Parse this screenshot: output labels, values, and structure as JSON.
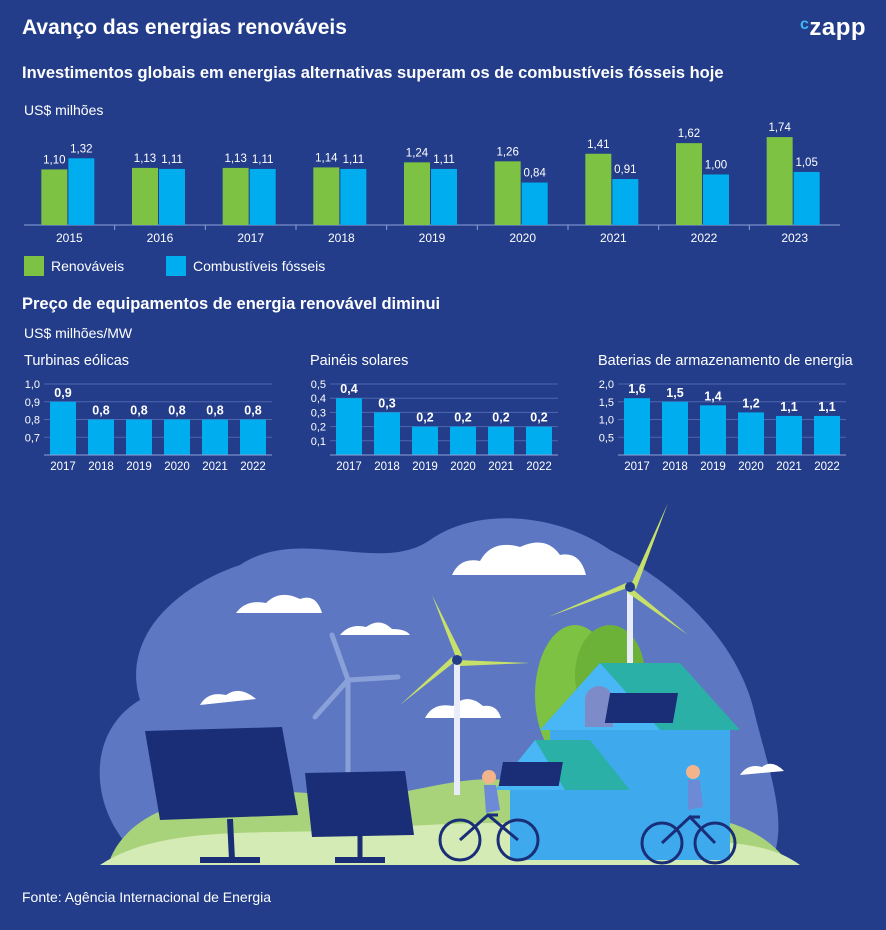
{
  "header": {
    "title": "Avanço das energias renováveis",
    "logo_text": "zapp",
    "logo_c": "c"
  },
  "colors": {
    "background": "#233d8a",
    "renewables": "#7dc242",
    "fossil": "#00aeef",
    "illustration_sky": "#5b75c0"
  },
  "section1": {
    "title": "Investimentos globais em energias alternativas superam os de combustíveis fósseis hoje",
    "unit": "US$ milhões",
    "legend": [
      {
        "label": "Renováveis",
        "color": "#7dc242"
      },
      {
        "label": "Combustíveis fósseis",
        "color": "#00aeef"
      }
    ]
  },
  "section2": {
    "title": "Preço de equipamentos de energia renovável diminui",
    "unit": "US$ milhões/MW"
  },
  "chart_data": [
    {
      "type": "bar",
      "categories": [
        "2015",
        "2016",
        "2017",
        "2018",
        "2019",
        "2020",
        "2021",
        "2022",
        "2023"
      ],
      "series": [
        {
          "name": "Renováveis",
          "values": [
            1.1,
            1.13,
            1.13,
            1.14,
            1.24,
            1.26,
            1.41,
            1.62,
            1.74
          ],
          "labels": [
            "1,10",
            "1,13",
            "1,13",
            "1,14",
            "1,24",
            "1,26",
            "1,41",
            "1,62",
            "1,74"
          ]
        },
        {
          "name": "Combustíveis fósseis",
          "values": [
            1.32,
            1.11,
            1.11,
            1.11,
            1.11,
            0.84,
            0.91,
            1.0,
            1.05
          ],
          "labels": [
            "1,32",
            "1,11",
            "1,11",
            "1,11",
            "1,11",
            "0,84",
            "0,91",
            "1,00",
            "1,05"
          ]
        }
      ],
      "ylim": [
        0,
        1.9
      ],
      "grid": false,
      "legend_position": "bottom-left"
    },
    {
      "type": "bar",
      "title": "Turbinas eólicas",
      "categories": [
        "2017",
        "2018",
        "2019",
        "2020",
        "2021",
        "2022"
      ],
      "values": [
        0.9,
        0.8,
        0.8,
        0.8,
        0.8,
        0.8
      ],
      "labels": [
        "0,9",
        "0,8",
        "0,8",
        "0,8",
        "0,8",
        "0,8"
      ],
      "yticks": [
        "1,0",
        "0,9",
        "0,8",
        "0,7"
      ],
      "ylim": [
        0.6,
        1.0
      ],
      "grid": true
    },
    {
      "type": "bar",
      "title": "Painéis solares",
      "categories": [
        "2017",
        "2018",
        "2019",
        "2020",
        "2021",
        "2022"
      ],
      "values": [
        0.4,
        0.3,
        0.2,
        0.2,
        0.2,
        0.2
      ],
      "labels": [
        "0,4",
        "0,3",
        "0,2",
        "0,2",
        "0,2",
        "0,2"
      ],
      "yticks": [
        "0,5",
        "0,4",
        "0,3",
        "0,2",
        "0,1"
      ],
      "ylim": [
        0,
        0.5
      ],
      "grid": true
    },
    {
      "type": "bar",
      "title": "Baterias de armazenamento de energia",
      "categories": [
        "2017",
        "2018",
        "2019",
        "2020",
        "2021",
        "2022"
      ],
      "values": [
        1.6,
        1.5,
        1.4,
        1.2,
        1.1,
        1.1
      ],
      "labels": [
        "1,6",
        "1,5",
        "1,4",
        "1,2",
        "1,1",
        "1,1"
      ],
      "yticks": [
        "2,0",
        "1,5",
        "1,0",
        "0,5"
      ],
      "ylim": [
        0,
        2.0
      ],
      "grid": true
    }
  ],
  "footer": {
    "source": "Fonte: Agência Internacional de Energia"
  }
}
